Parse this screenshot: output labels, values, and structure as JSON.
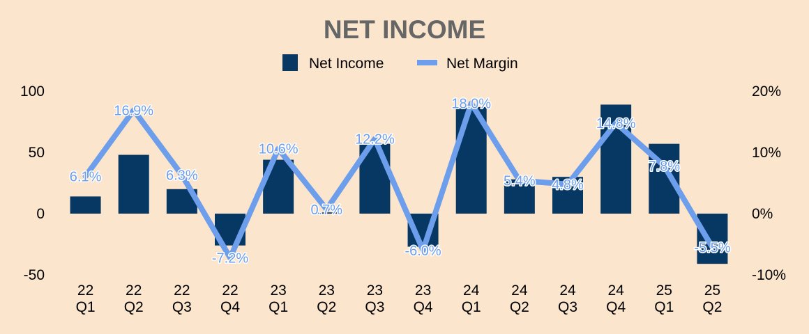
{
  "colors": {
    "background": "#fbe5cc",
    "bar": "#073763",
    "line": "#6d9eeb",
    "title": "#666666"
  },
  "chart_data": {
    "type": "bar",
    "title": "NET INCOME",
    "legend_position": "top-center",
    "grid": false,
    "categories": [
      [
        "22",
        "Q1"
      ],
      [
        "22",
        "Q2"
      ],
      [
        "22",
        "Q3"
      ],
      [
        "22",
        "Q4"
      ],
      [
        "23",
        "Q1"
      ],
      [
        "23",
        "Q2"
      ],
      [
        "23",
        "Q3"
      ],
      [
        "23",
        "Q4"
      ],
      [
        "24",
        "Q1"
      ],
      [
        "24",
        "Q2"
      ],
      [
        "24",
        "Q3"
      ],
      [
        "24",
        "Q4"
      ],
      [
        "25",
        "Q1"
      ],
      [
        "25",
        "Q2"
      ]
    ],
    "series": [
      {
        "name": "Net Income",
        "type": "bar",
        "axis": "left",
        "values": [
          14,
          48,
          20,
          -26,
          44,
          1,
          57,
          -27,
          87,
          28,
          30,
          89,
          57,
          -41
        ]
      },
      {
        "name": "Net Margin",
        "type": "line",
        "axis": "right",
        "values": [
          6.1,
          16.9,
          6.3,
          -7.2,
          10.6,
          0.7,
          12.2,
          -6.0,
          18.0,
          5.4,
          4.8,
          14.8,
          7.8,
          -5.5
        ],
        "labels": [
          "6.1%",
          "16.9%",
          "6.3%",
          "-7.2%",
          "10.6%",
          "0.7%",
          "12.2%",
          "-6.0%",
          "18.0%",
          "5.4%",
          "4.8%",
          "14.8%",
          "7.8%",
          "-5.5%"
        ]
      }
    ],
    "left_axis": {
      "ylim": [
        -50,
        100
      ],
      "ticks": [
        "100",
        "50",
        "0",
        "-50"
      ],
      "tick_values": [
        100,
        50,
        0,
        -50
      ]
    },
    "right_axis": {
      "ylim": [
        -10,
        20
      ],
      "ticks": [
        "20%",
        "10%",
        "0%",
        "-10%"
      ],
      "tick_values": [
        20,
        10,
        0,
        -10
      ]
    }
  }
}
